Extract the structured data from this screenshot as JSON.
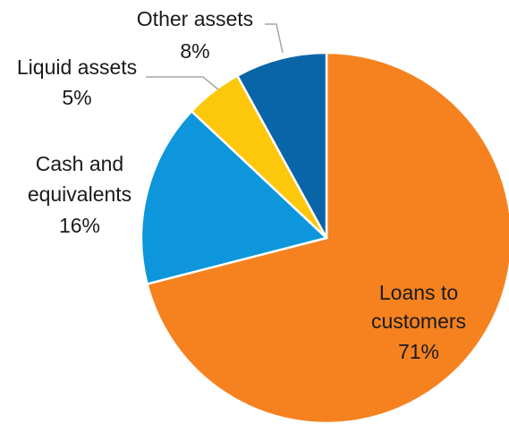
{
  "chart_data": {
    "type": "pie",
    "start_angle_deg": 0,
    "direction": "clockwise",
    "slices": [
      {
        "label_lines": [
          "Loans to",
          "customers"
        ],
        "value": 71,
        "value_text": "71%",
        "color": "#f5821f"
      },
      {
        "label_lines": [
          "Cash and",
          "equivalents"
        ],
        "value": 16,
        "value_text": "16%",
        "color": "#0d96db"
      },
      {
        "label_lines": [
          "Liquid assets"
        ],
        "value": 5,
        "value_text": "5%",
        "color": "#fdc70b"
      },
      {
        "label_lines": [
          "Other assets"
        ],
        "value": 8,
        "value_text": "8%",
        "color": "#0a65a8"
      }
    ]
  }
}
